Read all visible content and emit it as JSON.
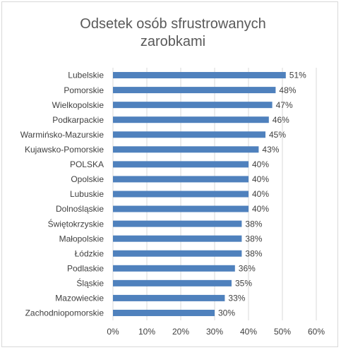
{
  "chart_data": {
    "type": "bar",
    "orientation": "horizontal",
    "title": "Odsetek osób sfrustrowanych zarobkami",
    "categories": [
      "Lubelskie",
      "Pomorskie",
      "Wielkopolskie",
      "Podkarpackie",
      "Warmińsko-Mazurskie",
      "Kujawsko-Pomorskie",
      "POLSKA",
      "Opolskie",
      "Lubuskie",
      "Dolnośląskie",
      "Świętokrzyskie",
      "Małopolskie",
      "Łódzkie",
      "Podlaskie",
      "Śląskie",
      "Mazowieckie",
      "Zachodniopomorskie"
    ],
    "values": [
      51,
      48,
      47,
      46,
      45,
      43,
      40,
      40,
      40,
      40,
      38,
      38,
      38,
      36,
      35,
      33,
      30
    ],
    "value_labels": [
      "51%",
      "48%",
      "47%",
      "46%",
      "45%",
      "43%",
      "40%",
      "40%",
      "40%",
      "40%",
      "38%",
      "38%",
      "38%",
      "36%",
      "35%",
      "33%",
      "30%"
    ],
    "color": "#4f81bd",
    "xlim": [
      0,
      60
    ],
    "xticks": [
      {
        "value": 0,
        "label": "0%"
      },
      {
        "value": 10,
        "label": "10%"
      },
      {
        "value": 20,
        "label": "20%"
      },
      {
        "value": 30,
        "label": "30%"
      },
      {
        "value": 40,
        "label": "40%"
      },
      {
        "value": 50,
        "label": "50%"
      },
      {
        "value": 60,
        "label": "60%"
      }
    ],
    "grid": true
  }
}
